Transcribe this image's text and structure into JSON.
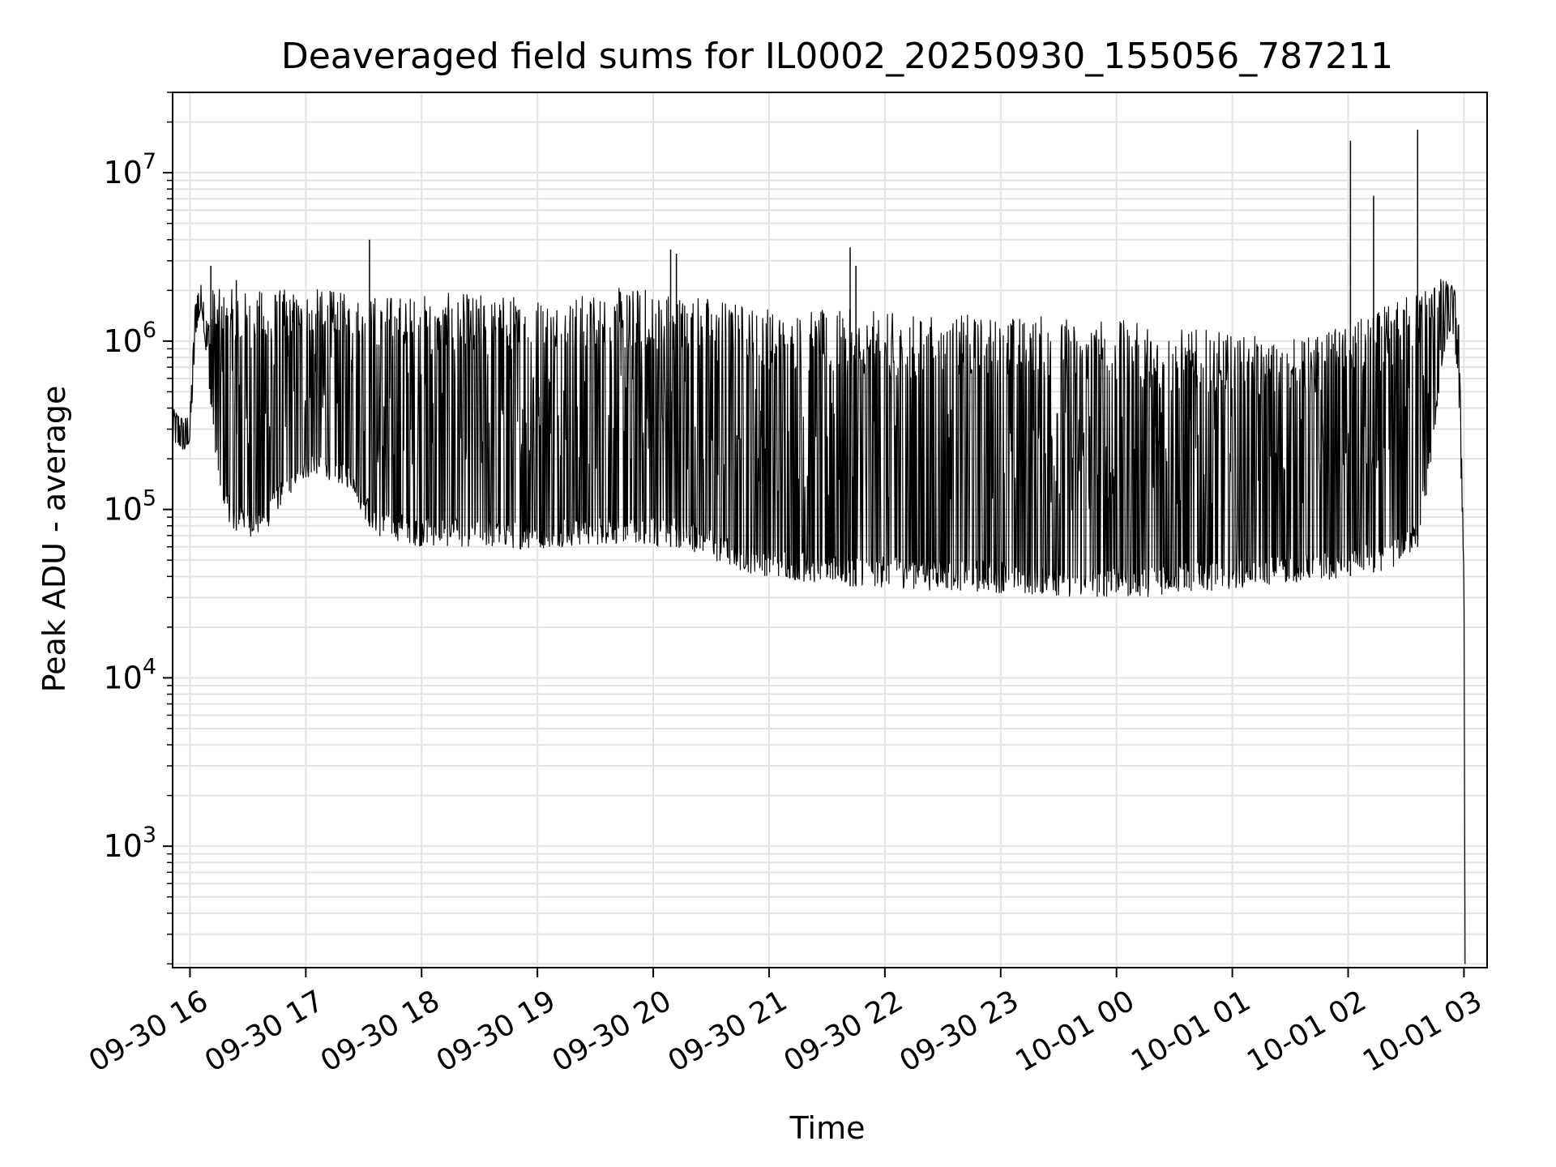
{
  "chart_data": {
    "type": "line",
    "title": "Deaveraged field sums for IL0002_20250930_155056_787211",
    "xlabel": "Time",
    "ylabel": "Peak ADU - average",
    "yscale": "log",
    "ylim": [
      190,
      30000000
    ],
    "xlim_hours": [
      -0.15,
      11.2
    ],
    "grid": true,
    "line_color": "#000000",
    "grid_color": "#e3e3e3",
    "x_ticks": [
      {
        "h": 0,
        "label": "09-30 16"
      },
      {
        "h": 1,
        "label": "09-30 17"
      },
      {
        "h": 2,
        "label": "09-30 18"
      },
      {
        "h": 3,
        "label": "09-30 19"
      },
      {
        "h": 4,
        "label": "09-30 20"
      },
      {
        "h": 5,
        "label": "09-30 21"
      },
      {
        "h": 6,
        "label": "09-30 22"
      },
      {
        "h": 7,
        "label": "09-30 23"
      },
      {
        "h": 8,
        "label": "10-01 00"
      },
      {
        "h": 9,
        "label": "10-01 01"
      },
      {
        "h": 10,
        "label": "10-01 02"
      },
      {
        "h": 11,
        "label": "10-01 03"
      }
    ],
    "y_ticks": [
      {
        "value": 1000,
        "base": "10",
        "exp": "3"
      },
      {
        "value": 10000,
        "base": "10",
        "exp": "4"
      },
      {
        "value": 100000,
        "base": "10",
        "exp": "5"
      },
      {
        "value": 1000000,
        "base": "10",
        "exp": "6"
      },
      {
        "value": 10000000,
        "base": "10",
        "exp": "7"
      }
    ],
    "series": [
      {
        "name": "Peak ADU - average",
        "x_hours": [
          -0.15,
          -0.1,
          -0.05,
          0.0,
          0.05,
          0.1,
          0.15,
          0.2,
          0.25,
          0.3,
          0.35,
          0.4,
          0.45,
          0.5,
          0.55,
          0.6,
          0.65,
          0.7,
          0.75,
          0.8,
          0.85,
          0.9,
          0.95,
          1.0,
          1.1,
          1.2,
          1.3,
          1.4,
          1.5,
          1.6,
          1.7,
          1.8,
          1.9,
          2.0,
          2.2,
          2.4,
          2.6,
          2.8,
          3.0,
          3.2,
          3.4,
          3.6,
          3.8,
          4.0,
          4.2,
          4.4,
          4.6,
          4.8,
          5.0,
          5.2,
          5.4,
          5.6,
          5.8,
          6.0,
          6.2,
          6.4,
          6.6,
          6.8,
          7.0,
          7.2,
          7.4,
          7.6,
          7.8,
          8.0,
          8.2,
          8.4,
          8.6,
          8.8,
          9.0,
          9.2,
          9.4,
          9.6,
          9.8,
          10.0,
          10.2,
          10.4,
          10.5,
          10.6,
          10.7,
          10.8,
          10.85,
          10.9,
          10.95,
          11.0,
          11.01
        ],
        "low_env": [
          250000,
          240000,
          220000,
          250000,
          1100000,
          1600000,
          700000,
          300000,
          130000,
          100000,
          80000,
          75000,
          72000,
          70000,
          68000,
          68000,
          70000,
          85000,
          95000,
          110000,
          120000,
          130000,
          140000,
          150000,
          160000,
          150000,
          140000,
          130000,
          90000,
          70000,
          65000,
          65000,
          62000,
          60000,
          60000,
          60000,
          58000,
          58000,
          58000,
          60000,
          60000,
          62000,
          62000,
          60000,
          60000,
          55000,
          45000,
          42000,
          40000,
          38000,
          36000,
          35000,
          35000,
          34000,
          34000,
          33000,
          33000,
          32000,
          32000,
          31000,
          31000,
          30000,
          30000,
          30000,
          30000,
          31000,
          32000,
          33000,
          34000,
          35000,
          36000,
          37000,
          38000,
          40000,
          42000,
          45000,
          50000,
          60000,
          150000,
          600000,
          1000000,
          1200000,
          600000,
          40000,
          200
        ],
        "high_env": [
          400000,
          380000,
          350000,
          380000,
          2000000,
          2200000,
          1300000,
          2200000,
          2100000,
          2100000,
          2100000,
          2100000,
          2100000,
          2100000,
          2100000,
          2100000,
          2100000,
          2200000,
          2200000,
          2100000,
          2100000,
          2100000,
          2100000,
          2100000,
          2100000,
          2100000,
          2000000,
          2000000,
          2000000,
          2000000,
          2000000,
          2000000,
          2000000,
          2000000,
          2000000,
          2000000,
          2000000,
          2000000,
          2000000,
          2000000,
          2000000,
          2100000,
          2200000,
          2200000,
          2100000,
          2000000,
          1900000,
          1800000,
          1700000,
          1600000,
          1600000,
          1600000,
          1600000,
          1550000,
          1500000,
          1500000,
          1500000,
          1500000,
          1500000,
          1500000,
          1500000,
          1450000,
          1450000,
          1400000,
          1350000,
          1300000,
          1250000,
          1200000,
          1150000,
          1100000,
          1050000,
          1100000,
          1200000,
          1300000,
          1500000,
          1800000,
          2000000,
          2200000,
          2400000,
          2400000,
          2300000,
          2200000,
          1800000,
          60000,
          200
        ],
        "spikes": [
          {
            "h": 0.18,
            "value": 2800000
          },
          {
            "h": 0.4,
            "value": 2300000
          },
          {
            "h": 1.55,
            "value": 4000000
          },
          {
            "h": 4.15,
            "value": 3500000
          },
          {
            "h": 4.2,
            "value": 3300000
          },
          {
            "h": 5.7,
            "value": 3600000
          },
          {
            "h": 5.75,
            "value": 2800000
          },
          {
            "h": 10.02,
            "value": 15500000
          },
          {
            "h": 10.22,
            "value": 7300000
          },
          {
            "h": 10.6,
            "value": 18000000
          }
        ]
      }
    ]
  }
}
